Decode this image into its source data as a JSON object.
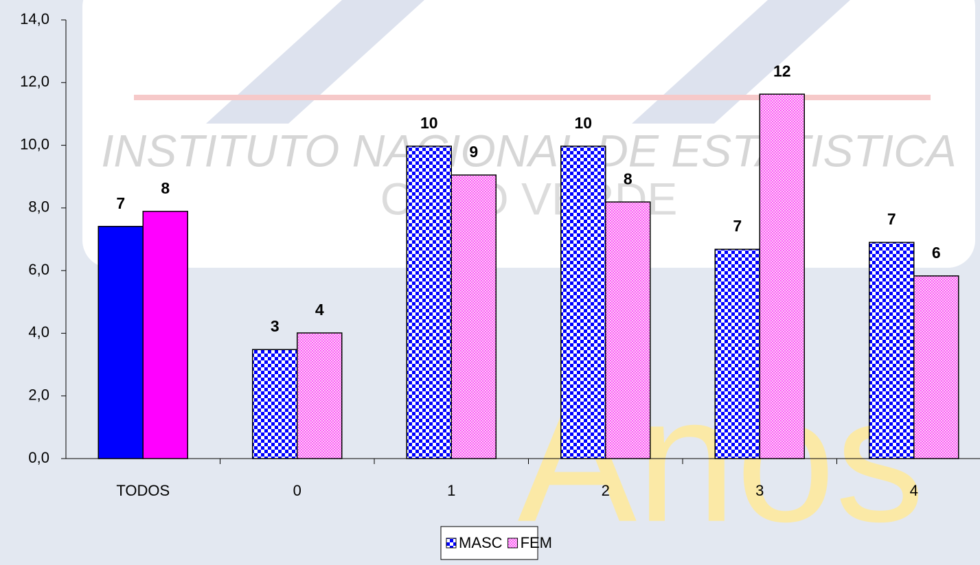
{
  "chart_data": {
    "type": "bar",
    "watermark": [
      "INSTITUTO NACIONAL DE ESTATISTICA",
      "CABO VERDE",
      "Anos"
    ],
    "categories": [
      "TODOS",
      "0",
      "1",
      "2",
      "3",
      "4"
    ],
    "series": [
      {
        "name": "MASC",
        "color": "#0000ff",
        "values": [
          7.41,
          3.48,
          9.97,
          9.97,
          6.68,
          6.9
        ],
        "value_labels": [
          "7",
          "3",
          "10",
          "10",
          "7",
          "7"
        ]
      },
      {
        "name": "FEM",
        "color": "#ff00ff",
        "values": [
          7.89,
          4.01,
          9.05,
          8.19,
          11.63,
          5.83
        ],
        "value_labels": [
          "8",
          "4",
          "9",
          "8",
          "12",
          "6"
        ]
      }
    ],
    "ylim": [
      0,
      14
    ],
    "yticks": [
      {
        "value": 0,
        "label": "0,0"
      },
      {
        "value": 2,
        "label": "2,0"
      },
      {
        "value": 4,
        "label": "4,0"
      },
      {
        "value": 6,
        "label": "6,0"
      },
      {
        "value": 8,
        "label": "8,0"
      },
      {
        "value": 10,
        "label": "10,0"
      },
      {
        "value": 12,
        "label": "12,0"
      },
      {
        "value": 14,
        "label": "14,0"
      }
    ],
    "legend": "bottom"
  }
}
